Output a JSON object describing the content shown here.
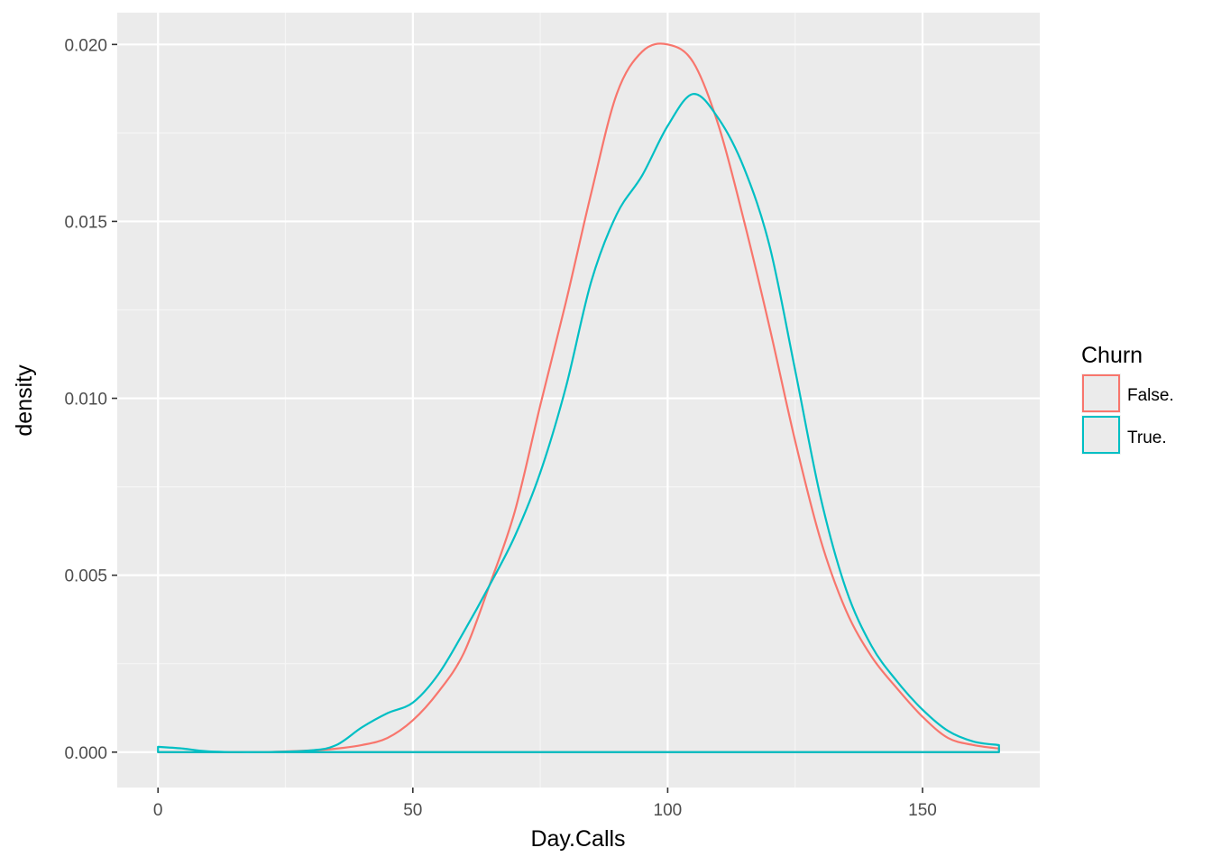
{
  "chart_data": {
    "type": "area",
    "xlabel": "Day.Calls",
    "ylabel": "density",
    "xlim": [
      -8,
      173
    ],
    "ylim": [
      -0.001,
      0.0209
    ],
    "x_ticks": [
      0,
      50,
      100,
      150
    ],
    "x_tick_labels": [
      "0",
      "50",
      "100",
      "150"
    ],
    "y_ticks": [
      0.0,
      0.005,
      0.01,
      0.015,
      0.02
    ],
    "y_tick_labels": [
      "0.000",
      "0.005",
      "0.010",
      "0.015",
      "0.020"
    ],
    "grid": true,
    "legend": {
      "title": "Churn",
      "position": "right"
    },
    "series": [
      {
        "name": "False.",
        "color": "#F8766D",
        "x": [
          0,
          5,
          10,
          20,
          30,
          35,
          40,
          45,
          50,
          55,
          60,
          65,
          70,
          75,
          80,
          85,
          90,
          95,
          100,
          105,
          110,
          115,
          120,
          125,
          130,
          135,
          140,
          145,
          150,
          155,
          160,
          165
        ],
        "y": [
          0.0,
          0.0,
          0.0,
          0.0,
          5e-05,
          0.0001,
          0.0002,
          0.0004,
          0.0009,
          0.0017,
          0.0028,
          0.0047,
          0.0068,
          0.0098,
          0.0127,
          0.0158,
          0.0186,
          0.0198,
          0.02,
          0.0195,
          0.0177,
          0.015,
          0.012,
          0.0088,
          0.006,
          0.004,
          0.0027,
          0.0018,
          0.001,
          0.0004,
          0.0002,
          0.0001
        ]
      },
      {
        "name": "True.",
        "color": "#00BFC4",
        "x": [
          0,
          5,
          10,
          20,
          30,
          35,
          40,
          45,
          50,
          55,
          60,
          65,
          70,
          75,
          80,
          85,
          90,
          95,
          100,
          105,
          110,
          115,
          120,
          125,
          130,
          135,
          140,
          145,
          150,
          155,
          160,
          165
        ],
        "y": [
          0.00015,
          0.0001,
          2e-05,
          0.0,
          5e-05,
          0.0002,
          0.0007,
          0.0011,
          0.0014,
          0.0022,
          0.0034,
          0.0047,
          0.0061,
          0.0079,
          0.0103,
          0.0133,
          0.0152,
          0.0163,
          0.0177,
          0.0186,
          0.0179,
          0.0165,
          0.0143,
          0.0108,
          0.0072,
          0.0046,
          0.003,
          0.002,
          0.0012,
          0.0006,
          0.0003,
          0.0002
        ]
      }
    ]
  }
}
